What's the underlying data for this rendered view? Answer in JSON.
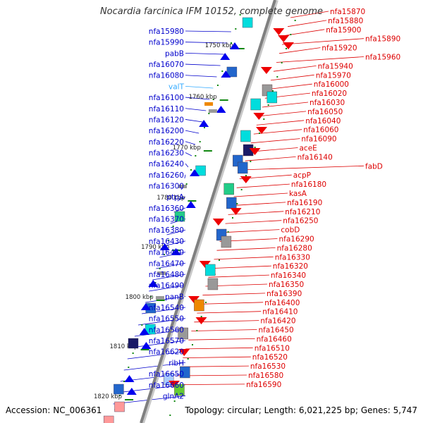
{
  "title": "Nocardia farcinica IFM 10152, complete genome",
  "footer": {
    "accession": "Accession: NC_006361",
    "summary": "Topology: circular; Length: 6,021,225 bp; Genes: 5,747"
  },
  "colors": {
    "left_label": "#0000cc",
    "left_label_trna": "#33aaff",
    "right_label": "#dd0000",
    "left_gene": "#0000ee",
    "right_gene": "#ee0000",
    "backbone": "#808080",
    "tick": "#118811"
  },
  "ticks": [
    "1750 kbp",
    "1760 kbp",
    "1770 kbp",
    "1780 kbp",
    "1790 kbp",
    "1800 kbp",
    "1810 kbp",
    "1820 kbp"
  ],
  "left_labels": [
    {
      "text": "nfa15980"
    },
    {
      "text": "nfa15990"
    },
    {
      "text": "pabB"
    },
    {
      "text": "nfa16070"
    },
    {
      "text": "nfa16080"
    },
    {
      "text": "valT",
      "trna": true
    },
    {
      "text": "nfa16100"
    },
    {
      "text": "nfa16110"
    },
    {
      "text": "nfa16120"
    },
    {
      "text": "nfa16200"
    },
    {
      "text": "nfa16220"
    },
    {
      "text": "nfa16230"
    },
    {
      "text": "nfa16240"
    },
    {
      "text": "nfa16260"
    },
    {
      "text": "nfa16300"
    },
    {
      "text": "ptpA"
    },
    {
      "text": "nfa16360"
    },
    {
      "text": "nfa16370"
    },
    {
      "text": "nfa16380"
    },
    {
      "text": "nfa16430"
    },
    {
      "text": "nfa16440"
    },
    {
      "text": "nfa16470"
    },
    {
      "text": "nfa16480"
    },
    {
      "text": "nfa16490"
    },
    {
      "text": "panB"
    },
    {
      "text": "nfa16540"
    },
    {
      "text": "nfa16550"
    },
    {
      "text": "nfa16560"
    },
    {
      "text": "nfa16570"
    },
    {
      "text": "nfa16620"
    },
    {
      "text": "ribH"
    },
    {
      "text": "nfa16650"
    },
    {
      "text": "nfa16660"
    },
    {
      "text": "glnA2"
    }
  ],
  "right_labels": [
    {
      "text": "nfa15870"
    },
    {
      "text": "nfa15880"
    },
    {
      "text": "nfa15900"
    },
    {
      "text": "nfa15890"
    },
    {
      "text": "nfa15920"
    },
    {
      "text": "nfa15960"
    },
    {
      "text": "nfa15940"
    },
    {
      "text": "nfa15970"
    },
    {
      "text": "nfa16000"
    },
    {
      "text": "nfa16020"
    },
    {
      "text": "nfa16030"
    },
    {
      "text": "nfa16050"
    },
    {
      "text": "nfa16040"
    },
    {
      "text": "nfa16060"
    },
    {
      "text": "nfa16090"
    },
    {
      "text": "aceE"
    },
    {
      "text": "nfa16140"
    },
    {
      "text": "fabD"
    },
    {
      "text": "acpP"
    },
    {
      "text": "nfa16180"
    },
    {
      "text": "kasA"
    },
    {
      "text": "nfa16190"
    },
    {
      "text": "nfa16210"
    },
    {
      "text": "nfa16250"
    },
    {
      "text": "cobD"
    },
    {
      "text": "nfa16290"
    },
    {
      "text": "nfa16280"
    },
    {
      "text": "nfa16330"
    },
    {
      "text": "nfa16320"
    },
    {
      "text": "nfa16340"
    },
    {
      "text": "nfa16350"
    },
    {
      "text": "nfa16390"
    },
    {
      "text": "nfa16400"
    },
    {
      "text": "nfa16410"
    },
    {
      "text": "nfa16420"
    },
    {
      "text": "nfa16450"
    },
    {
      "text": "nfa16460"
    },
    {
      "text": "nfa16510"
    },
    {
      "text": "nfa16520"
    },
    {
      "text": "nfa16530"
    },
    {
      "text": "nfa16580"
    },
    {
      "text": "nfa16590"
    }
  ]
}
